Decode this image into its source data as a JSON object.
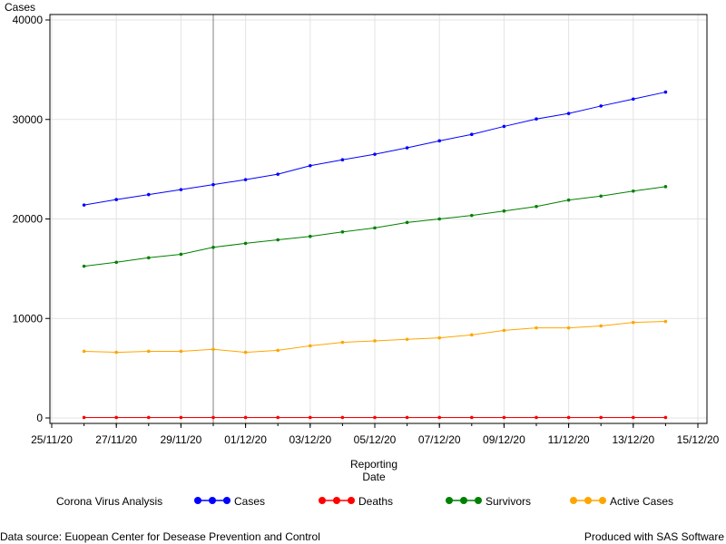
{
  "chart_data": {
    "type": "line",
    "ylabel": "Cases",
    "xlabel_lines": [
      "Reporting",
      "Date"
    ],
    "ylim": [
      0,
      40000
    ],
    "yticks": [
      0,
      10000,
      20000,
      30000,
      40000
    ],
    "xticks": [
      "25/11/20",
      "27/11/20",
      "29/11/20",
      "01/12/20",
      "03/12/20",
      "05/12/20",
      "07/12/20",
      "09/12/20",
      "11/12/20",
      "13/12/20",
      "15/12/20"
    ],
    "x": [
      "26/11/20",
      "27/11/20",
      "28/11/20",
      "29/11/20",
      "30/11/20",
      "01/12/20",
      "02/12/20",
      "03/12/20",
      "04/12/20",
      "05/12/20",
      "06/12/20",
      "07/12/20",
      "08/12/20",
      "09/12/20",
      "10/12/20",
      "11/12/20",
      "12/12/20",
      "13/12/20",
      "14/12/20"
    ],
    "reference_line_x": "30/11/20",
    "grid": true,
    "legend_placement": "bottom",
    "legend_title": "Corona Virus Analysis",
    "series": [
      {
        "name": "Cases",
        "color": "#0000ff",
        "values": [
          21400,
          21950,
          22450,
          22950,
          23450,
          23950,
          24500,
          25350,
          25950,
          26500,
          27150,
          27850,
          28500,
          29300,
          30050,
          30600,
          31350,
          32050,
          32750
        ]
      },
      {
        "name": "Deaths",
        "color": "#ff0000",
        "values": [
          50,
          50,
          50,
          50,
          50,
          50,
          50,
          50,
          50,
          50,
          50,
          50,
          50,
          50,
          50,
          50,
          50,
          50,
          50
        ]
      },
      {
        "name": "Survivors",
        "color": "#008000",
        "values": [
          15250,
          15650,
          16100,
          16450,
          17150,
          17550,
          17900,
          18250,
          18700,
          19100,
          19650,
          20000,
          20350,
          20800,
          21250,
          21900,
          22300,
          22800,
          23250
        ]
      },
      {
        "name": "Active Cases",
        "color": "#ffa500",
        "values": [
          6700,
          6600,
          6700,
          6700,
          6900,
          6600,
          6800,
          7250,
          7600,
          7750,
          7900,
          8050,
          8350,
          8800,
          9050,
          9050,
          9250,
          9600,
          9700
        ]
      }
    ]
  },
  "footer": {
    "left": "Data source: Euopean Center for Desease Prevention and Control",
    "right": "Produced with SAS Software"
  }
}
